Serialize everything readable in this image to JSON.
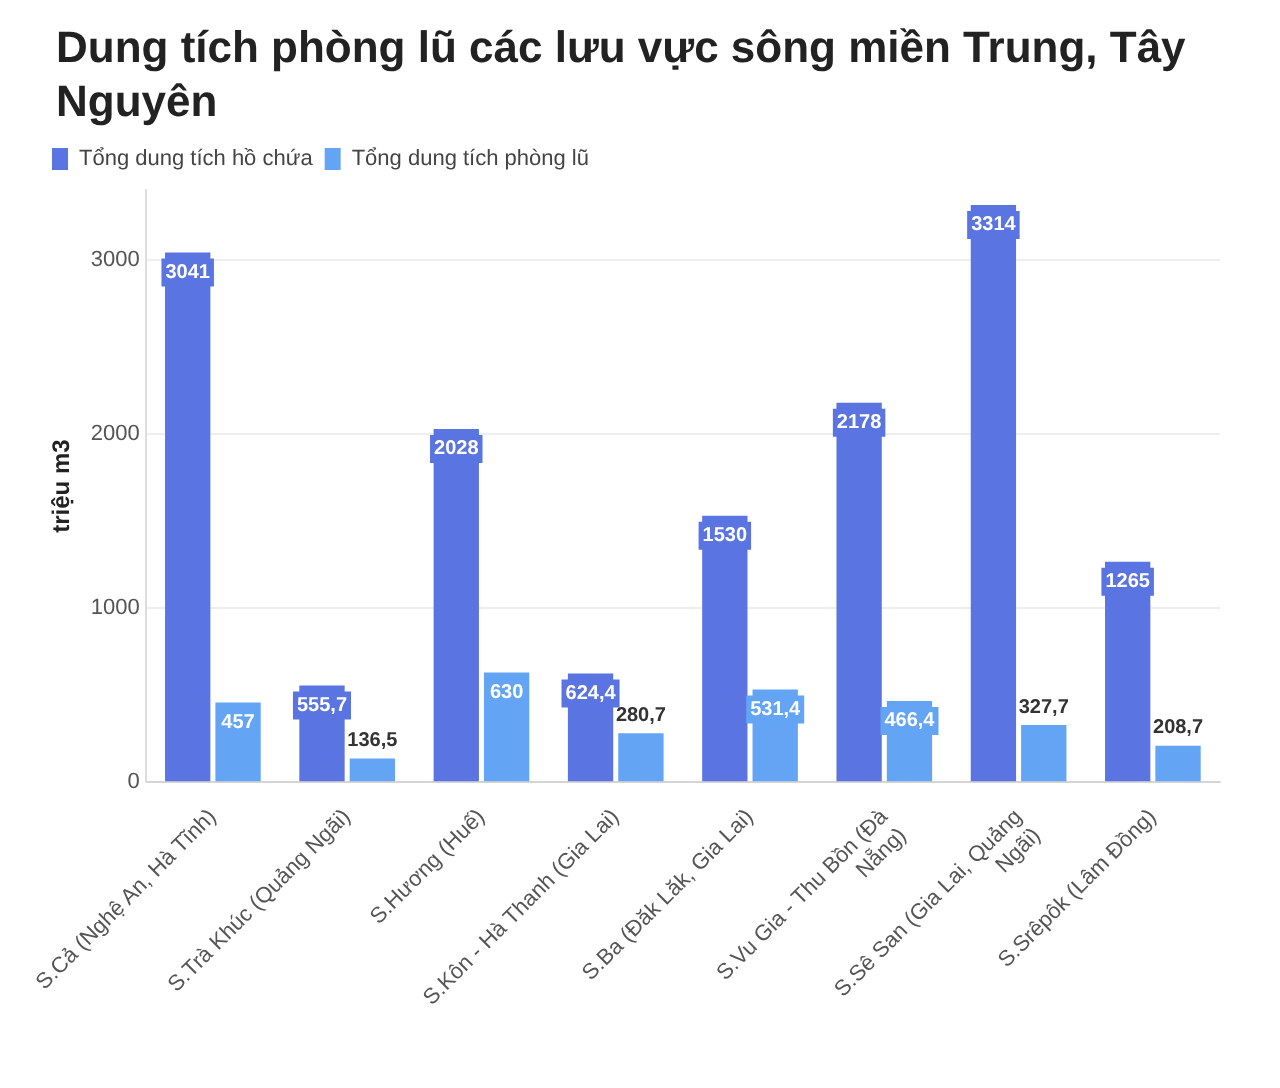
{
  "chart_data": {
    "type": "bar",
    "title": "Dung tích phòng lũ các lưu vực sông miền Trung, Tây Nguyên",
    "ylabel": "triệu m3",
    "categories": [
      "S.Cả (Nghệ An, Hà Tĩnh)",
      "S.Trà Khúc (Quảng Ngãi)",
      "S.Hương (Huế)",
      "S.Kôn - Hà Thanh (Gia Lai)",
      "S.Ba (Đăk Lăk, Gia Lai)",
      "S.Vu Gia - Thu Bồn (Đà Nẵng)",
      "S.Sê San (Gia Lai, Quảng Ngãi)",
      "S.Srêpôk (Lâm Đồng)"
    ],
    "series": [
      {
        "name": "Tổng dung tích hồ chứa",
        "color": "#5a74e2",
        "values": [
          3041,
          555.7,
          2028,
          624.4,
          1530,
          2178,
          3314,
          1265
        ],
        "value_labels": [
          "3041",
          "555,7",
          "2028",
          "624,4",
          "1530",
          "2178",
          "3314",
          "1265"
        ]
      },
      {
        "name": "Tổng dung tích phòng lũ",
        "color": "#63a4f4",
        "values": [
          457,
          136.5,
          630,
          280.7,
          531.4,
          466.4,
          327.7,
          208.7
        ],
        "value_labels": [
          "457",
          "136,5",
          "630",
          "280,7",
          "531,4",
          "466,4",
          "327,7",
          "208,7"
        ]
      }
    ],
    "ylim": [
      0,
      3400
    ],
    "yticks": [
      0,
      1000,
      2000,
      3000
    ],
    "grid": "y",
    "legend": "top left"
  }
}
